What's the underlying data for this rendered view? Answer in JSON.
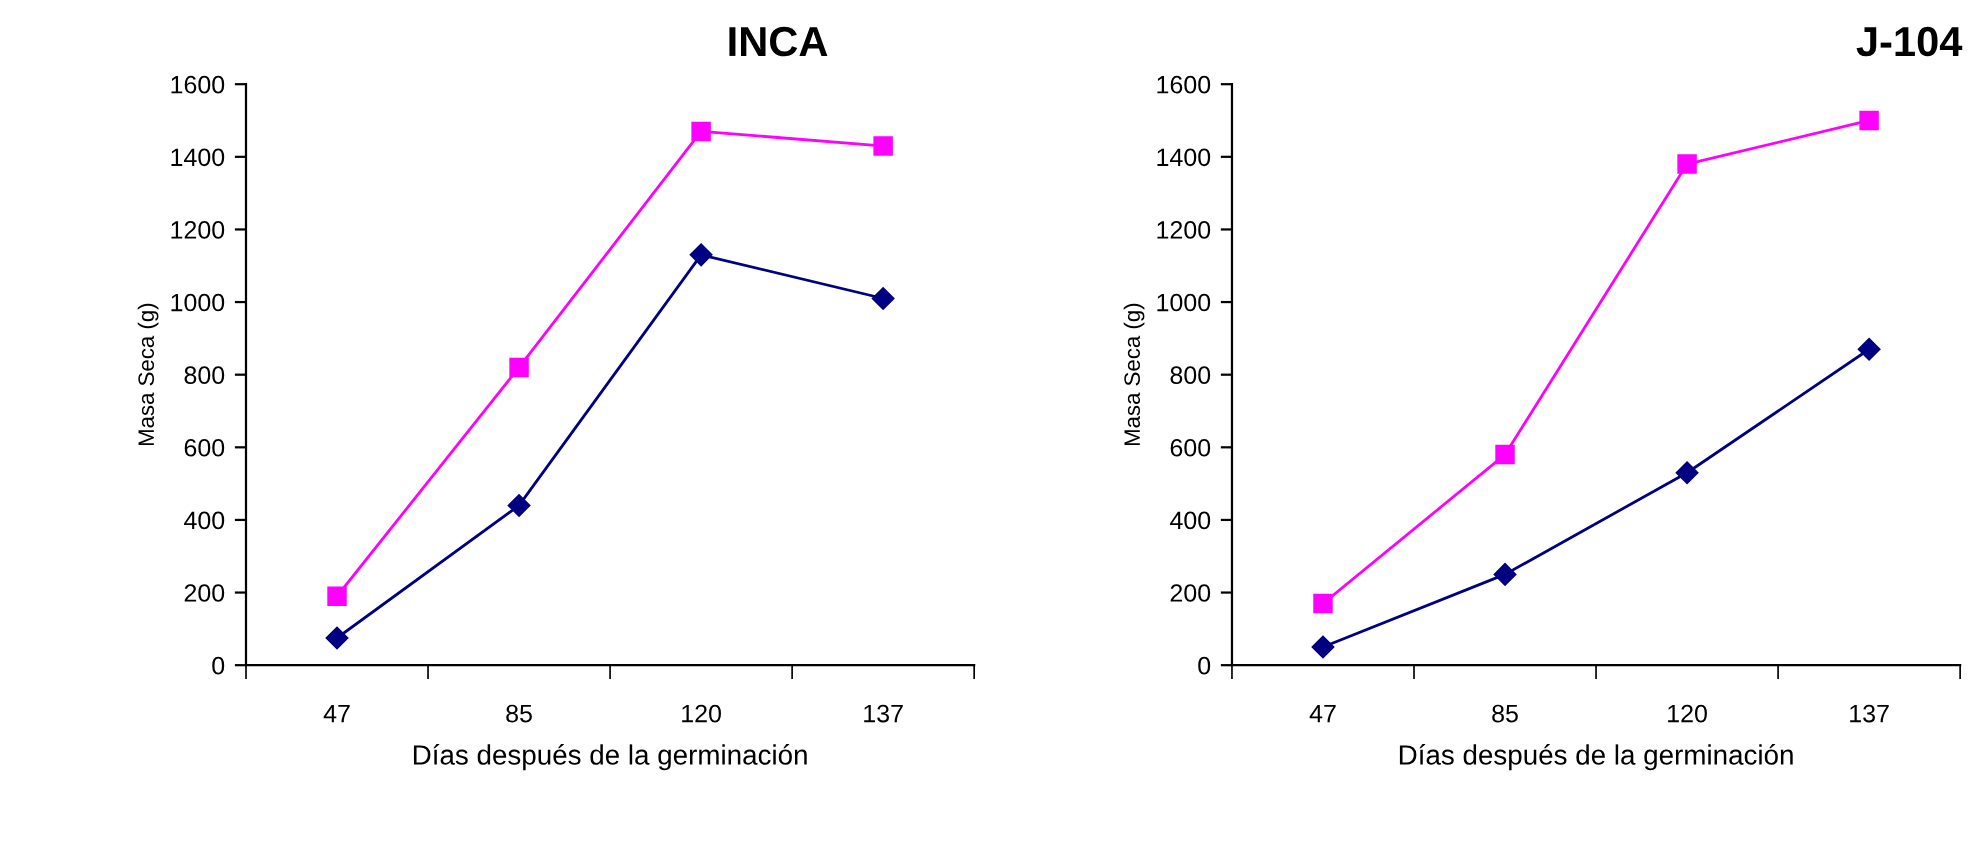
{
  "chart_data": [
    {
      "type": "line",
      "title": "INCA",
      "xlabel": "Días después de la germinación",
      "ylabel": "Masa Seca (g)",
      "categories": [
        "47",
        "85",
        "120",
        "137"
      ],
      "ylim": [
        0,
        1600
      ],
      "yticks": [
        0,
        200,
        400,
        600,
        800,
        1000,
        1200,
        1400,
        1600
      ],
      "grid": false,
      "legend": false,
      "series": [
        {
          "color": "#000080",
          "marker": "diamond",
          "values": [
            75,
            440,
            1130,
            1010
          ]
        },
        {
          "color": "#ff00ff",
          "marker": "square",
          "values": [
            190,
            820,
            1470,
            1430
          ]
        }
      ]
    },
    {
      "type": "line",
      "title": "J-104",
      "xlabel": "Días después de la germinación",
      "ylabel": "Masa Seca (g)",
      "categories": [
        "47",
        "85",
        "120",
        "137"
      ],
      "ylim": [
        0,
        1600
      ],
      "yticks": [
        0,
        200,
        400,
        600,
        800,
        1000,
        1200,
        1400,
        1600
      ],
      "grid": false,
      "legend": false,
      "series": [
        {
          "color": "#000080",
          "marker": "diamond",
          "values": [
            50,
            250,
            530,
            870
          ]
        },
        {
          "color": "#ff00ff",
          "marker": "square",
          "values": [
            170,
            580,
            1380,
            1500
          ]
        }
      ]
    }
  ]
}
